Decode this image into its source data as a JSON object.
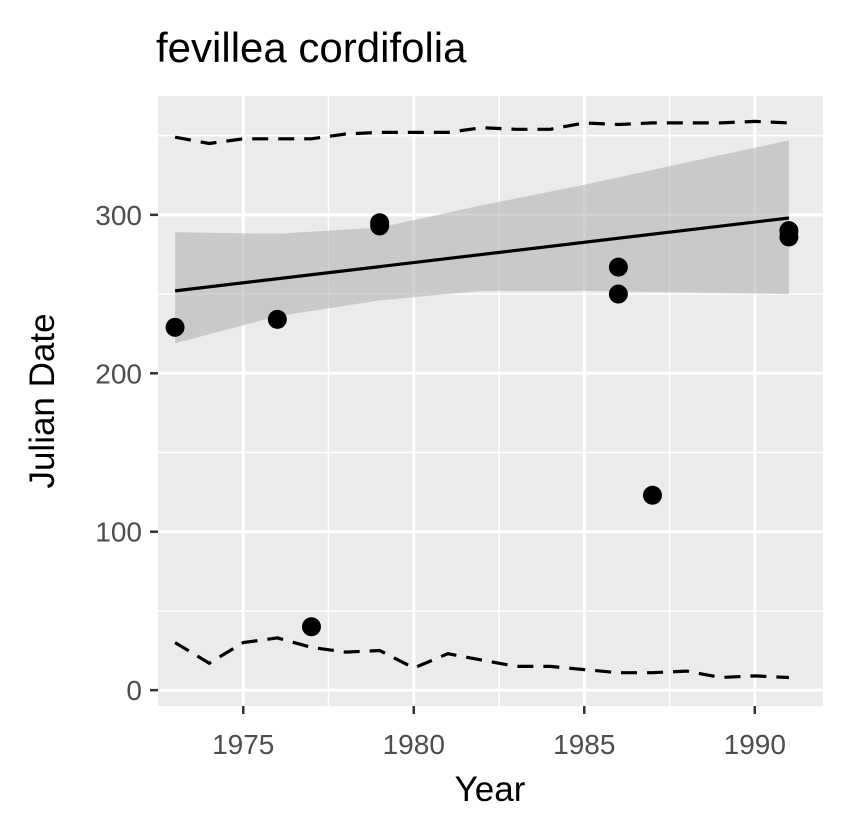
{
  "chart_data": {
    "type": "scatter",
    "title": "fevillea cordifolia",
    "xlabel": "Year",
    "ylabel": "Julian Date",
    "xlim": [
      1972.5,
      1992
    ],
    "ylim": [
      -10,
      375
    ],
    "x_ticks": [
      1975,
      1980,
      1985,
      1990
    ],
    "y_ticks": [
      0,
      100,
      200,
      300
    ],
    "x_tick_labels": [
      "1975",
      "1980",
      "1985",
      "1990"
    ],
    "y_tick_labels": [
      "0",
      "100",
      "200",
      "300"
    ],
    "grid": true,
    "legend": "none",
    "points": [
      {
        "x": 1973,
        "y": 229
      },
      {
        "x": 1976,
        "y": 234
      },
      {
        "x": 1977,
        "y": 40
      },
      {
        "x": 1979,
        "y": 293
      },
      {
        "x": 1979,
        "y": 295
      },
      {
        "x": 1986,
        "y": 250
      },
      {
        "x": 1986,
        "y": 267
      },
      {
        "x": 1987,
        "y": 123
      },
      {
        "x": 1991,
        "y": 286
      },
      {
        "x": 1991,
        "y": 290
      }
    ],
    "trend_line": {
      "x": [
        1973,
        1991
      ],
      "y": [
        252,
        298
      ]
    },
    "confidence_band": {
      "x": [
        1973,
        1976,
        1979,
        1982,
        1985,
        1988,
        1991
      ],
      "lower": [
        219,
        236,
        246,
        252,
        252,
        251,
        250
      ],
      "upper": [
        289,
        288,
        292,
        306,
        319,
        333,
        347
      ]
    },
    "upper_bound_line": {
      "x": [
        1973,
        1974,
        1975,
        1976,
        1977,
        1978,
        1979,
        1980,
        1981,
        1982,
        1983,
        1984,
        1985,
        1986,
        1987,
        1988,
        1989,
        1990,
        1991
      ],
      "y": [
        349,
        345,
        348,
        348,
        348,
        351,
        352,
        352,
        352,
        355,
        354,
        354,
        358,
        357,
        358,
        358,
        358,
        359,
        358
      ]
    },
    "lower_bound_line": {
      "x": [
        1973,
        1974,
        1975,
        1976,
        1977,
        1978,
        1979,
        1980,
        1981,
        1982,
        1983,
        1984,
        1985,
        1986,
        1987,
        1988,
        1989,
        1990,
        1991
      ],
      "y": [
        30,
        17,
        30,
        33,
        27,
        24,
        25,
        14,
        23,
        19,
        15,
        15,
        13,
        11,
        11,
        12,
        8,
        9,
        8
      ]
    },
    "colors": {
      "panel": "#ebebeb",
      "grid": "#ffffff",
      "points": "#000000",
      "trend_line": "#000000",
      "band": "#b3b3b3",
      "bound_lines": "#000000"
    }
  }
}
